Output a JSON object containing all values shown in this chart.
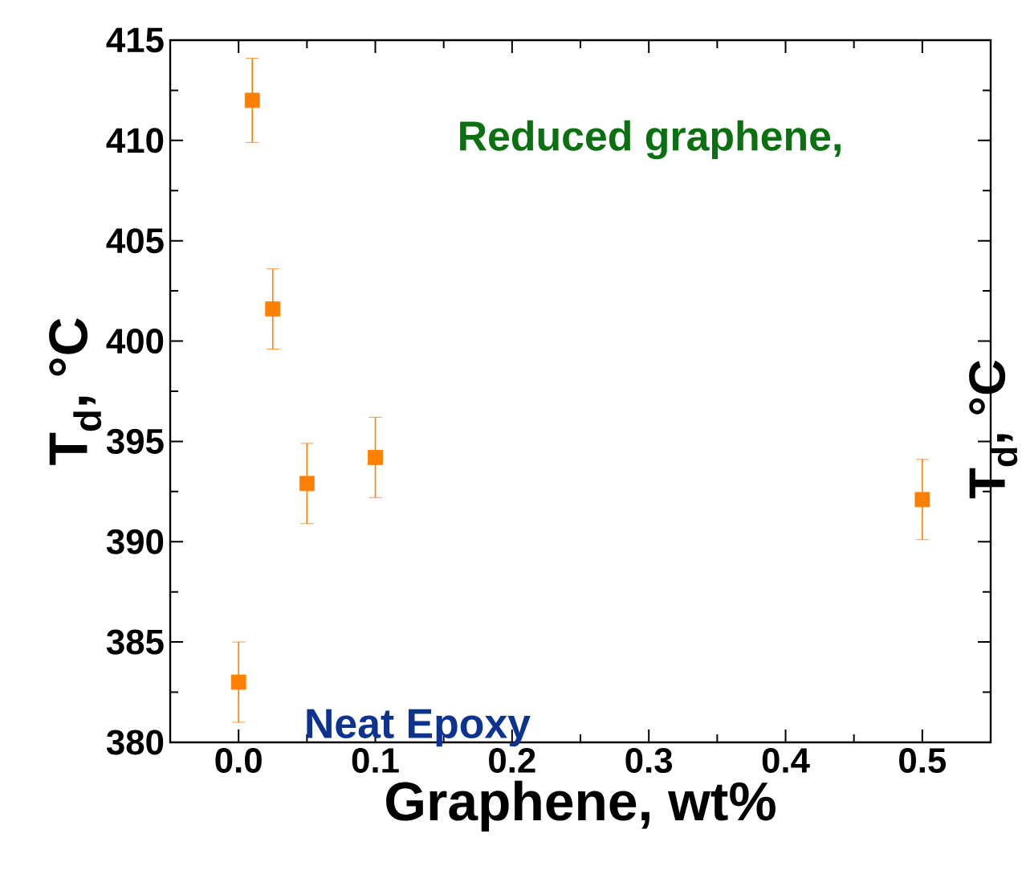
{
  "chart_data": {
    "type": "scatter",
    "x": [
      0,
      0.01,
      0.025,
      0.05,
      0.1,
      0.5
    ],
    "values": [
      383,
      412,
      401.6,
      392.9,
      394.2,
      392.1
    ],
    "errors": [
      2,
      2.1,
      2,
      2,
      2,
      2
    ],
    "color": "#ff8000",
    "marker": "square",
    "xlim": [
      -0.05,
      0.55
    ],
    "xticks": [
      {
        "value": 0,
        "label": "0.0"
      },
      0.1,
      0.2,
      0.3,
      0.4,
      0.5
    ],
    "ylim": [
      380,
      415
    ],
    "yticks": [
      380,
      385,
      390,
      395,
      400,
      405,
      410,
      415
    ],
    "xlabel": "Graphene, wt%",
    "ylabel": "T$_{d}$, °C",
    "y2label": "T$_{d}$, °C",
    "annotations": [
      "Reduced graphene,",
      "Neat Epoxy"
    ]
  }
}
